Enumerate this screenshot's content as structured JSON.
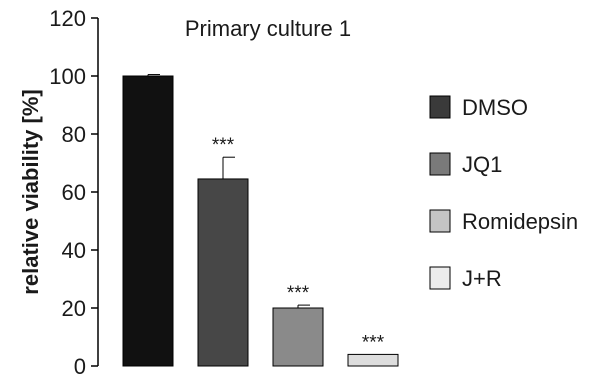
{
  "chart_data": {
    "type": "bar",
    "title": "Primary culture 1",
    "xlabel": "",
    "ylabel": "relative viability [%]",
    "ylim": [
      0,
      120
    ],
    "yticks": [
      "0",
      "20",
      "40",
      "60",
      "80",
      "100",
      "120"
    ],
    "grid": false,
    "legend_position": "right",
    "categories": [
      "DMSO",
      "JQ1",
      "Romidepsin",
      "J+R"
    ],
    "values": [
      100,
      64.5,
      20,
      4
    ],
    "errors": [
      0.5,
      7.5,
      1,
      0
    ],
    "significance": [
      "",
      "***",
      "***",
      "***"
    ],
    "colors": [
      "#111111",
      "#474747",
      "#8a8a8a",
      "#dddddd"
    ],
    "legend": [
      {
        "label": "DMSO",
        "color": "#3a3a3a"
      },
      {
        "label": "JQ1",
        "color": "#7a7a7a"
      },
      {
        "label": "Romidepsin",
        "color": "#c4c4c4"
      },
      {
        "label": "J+R",
        "color": "#ececec"
      }
    ]
  }
}
